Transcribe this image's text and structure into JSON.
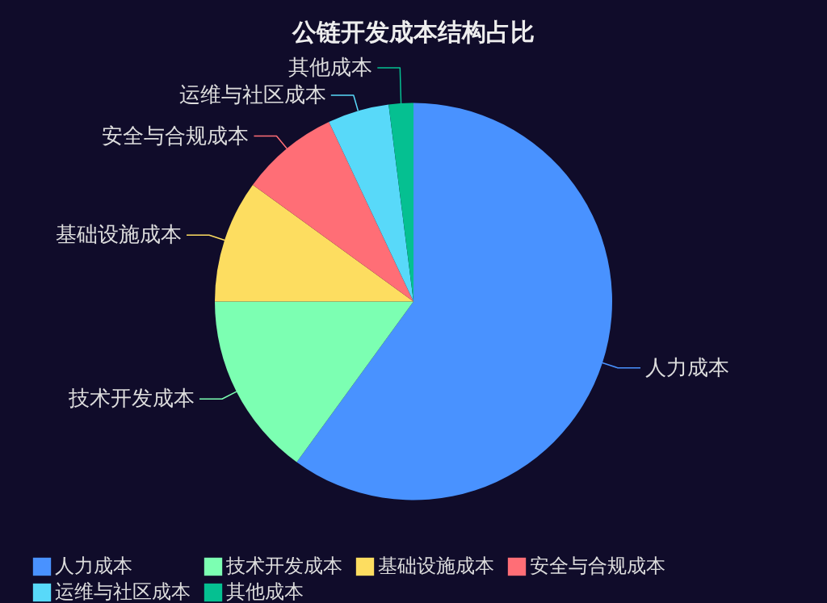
{
  "chart_data": {
    "type": "pie",
    "title": "公链开发成本结构占比",
    "categories": [
      "人力成本",
      "技术开发成本",
      "基础设施成本",
      "安全与合规成本",
      "运维与社区成本",
      "其他成本"
    ],
    "values": [
      60,
      15,
      10,
      8,
      5,
      2
    ],
    "colors": [
      "#4992ff",
      "#7cffb2",
      "#fddd60",
      "#ff6e76",
      "#58d9f9",
      "#05c091"
    ],
    "legend": "bottom"
  }
}
